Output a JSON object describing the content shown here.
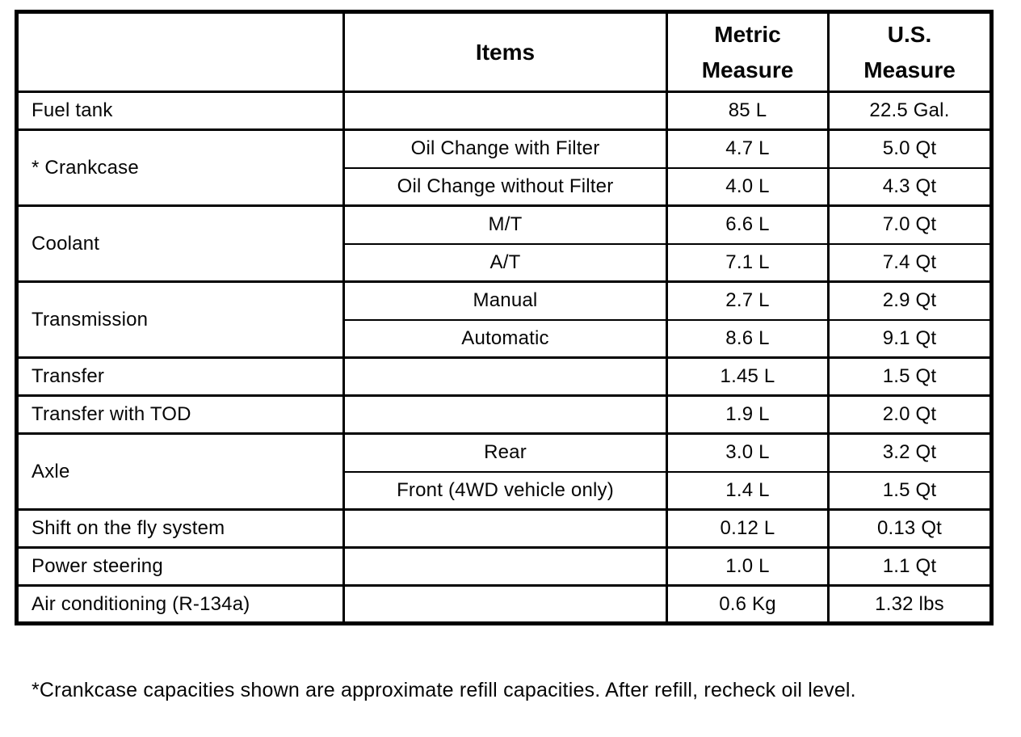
{
  "table": {
    "headers": {
      "category": "",
      "items": "Items",
      "metric": "Metric\nMeasure",
      "us": "U.S.\nMeasure"
    },
    "rows": [
      {
        "category": "Fuel tank",
        "span": 1,
        "item": "",
        "metric": "85 L",
        "us": "22.5 Gal."
      },
      {
        "category": "* Crankcase",
        "span": 2,
        "item": "Oil Change with Filter",
        "metric": "4.7 L",
        "us": "5.0 Qt"
      },
      {
        "item": "Oil Change without Filter",
        "metric": "4.0 L",
        "us": "4.3 Qt"
      },
      {
        "category": "Coolant",
        "span": 2,
        "item": "M/T",
        "metric": "6.6 L",
        "us": "7.0 Qt"
      },
      {
        "item": "A/T",
        "metric": "7.1 L",
        "us": "7.4 Qt"
      },
      {
        "category": "Transmission",
        "span": 2,
        "item": "Manual",
        "metric": "2.7 L",
        "us": "2.9 Qt"
      },
      {
        "item": "Automatic",
        "metric": "8.6 L",
        "us": "9.1 Qt"
      },
      {
        "category": "Transfer",
        "span": 1,
        "item": "",
        "metric": "1.45 L",
        "us": "1.5 Qt"
      },
      {
        "category": "Transfer with TOD",
        "span": 1,
        "item": "",
        "metric": "1.9 L",
        "us": "2.0 Qt"
      },
      {
        "category": "Axle",
        "span": 2,
        "item": "Rear",
        "metric": "3.0 L",
        "us": "3.2 Qt"
      },
      {
        "item": "Front (4WD vehicle only)",
        "metric": "1.4 L",
        "us": "1.5 Qt"
      },
      {
        "category": "Shift on the fly system",
        "span": 1,
        "item": "",
        "metric": "0.12 L",
        "us": "0.13 Qt"
      },
      {
        "category": "Power steering",
        "span": 1,
        "item": "",
        "metric": "1.0 L",
        "us": "1.1 Qt"
      },
      {
        "category": "Air conditioning (R-134a)",
        "span": 1,
        "item": "",
        "metric": "0.6 Kg",
        "us": "1.32 lbs"
      }
    ]
  },
  "footnote": "*Crankcase capacities shown are approximate refill capacities. After refill, recheck oil level."
}
